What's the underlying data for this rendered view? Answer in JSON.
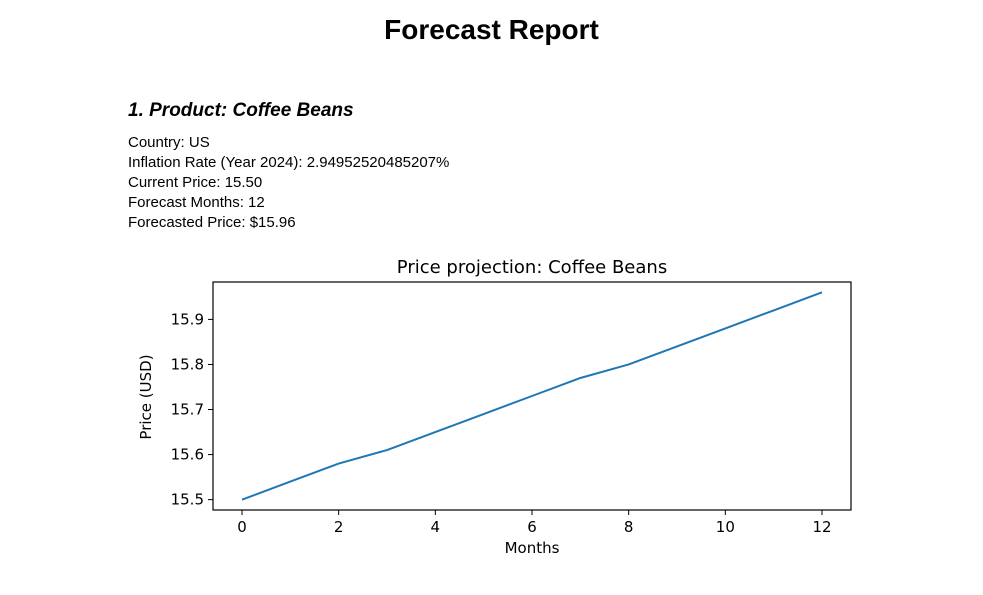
{
  "report": {
    "title": "Forecast Report"
  },
  "product_section": {
    "heading": "1. Product: Coffee Beans",
    "details": [
      "Country: US",
      "Inflation Rate (Year 2024): 2.94952520485207%",
      "Current Price: 15.50",
      "Forecast Months: 12",
      "Forecasted Price: $15.96"
    ]
  },
  "chart_data": {
    "type": "line",
    "title": "Price projection: Coffee Beans",
    "xlabel": "Months",
    "ylabel": "Price (USD)",
    "xlim": [
      -0.6,
      12.6
    ],
    "ylim": [
      15.477,
      15.983
    ],
    "x_ticks": [
      0,
      2,
      4,
      6,
      8,
      10,
      12
    ],
    "x_tick_labels": [
      "0",
      "2",
      "4",
      "6",
      "8",
      "10",
      "12"
    ],
    "y_ticks": [
      15.5,
      15.6,
      15.7,
      15.8,
      15.9
    ],
    "y_tick_labels": [
      "15.5",
      "15.6",
      "15.7",
      "15.8",
      "15.9"
    ],
    "grid": false,
    "series": [
      {
        "color": "#1f77b4",
        "x": [
          0,
          1,
          2,
          3,
          4,
          5,
          6,
          7,
          8,
          9,
          10,
          11,
          12
        ],
        "values": [
          15.5,
          15.54,
          15.58,
          15.61,
          15.65,
          15.69,
          15.73,
          15.77,
          15.8,
          15.84,
          15.88,
          15.92,
          15.96
        ]
      }
    ]
  }
}
